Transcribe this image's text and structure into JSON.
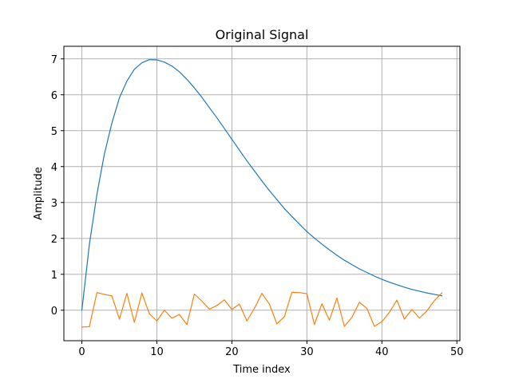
{
  "chart_data": {
    "type": "line",
    "title": "Original Signal",
    "xlabel": "Time index",
    "ylabel": "Amplitude",
    "xlim": [
      -2.4,
      50.4
    ],
    "ylim": [
      -0.85,
      7.35
    ],
    "xticks": [
      0,
      10,
      20,
      30,
      40,
      50
    ],
    "yticks": [
      0,
      1,
      2,
      3,
      4,
      5,
      6,
      7
    ],
    "grid": true,
    "legend": "none",
    "series": [
      {
        "color": "#1f77b4",
        "x": [
          0,
          1,
          2,
          3,
          4,
          5,
          6,
          7,
          8,
          9,
          10,
          11,
          12,
          13,
          14,
          15,
          16,
          17,
          18,
          19,
          20,
          21,
          22,
          23,
          24,
          25,
          26,
          27,
          28,
          29,
          30,
          31,
          32,
          33,
          34,
          35,
          36,
          37,
          38,
          39,
          40,
          41,
          42,
          43,
          44,
          45,
          46,
          47,
          48
        ],
        "values": [
          0,
          1.83,
          3.22,
          4.35,
          5.21,
          5.91,
          6.38,
          6.71,
          6.89,
          6.98,
          6.97,
          6.91,
          6.8,
          6.64,
          6.43,
          6.19,
          5.93,
          5.64,
          5.36,
          5.06,
          4.76,
          4.46,
          4.16,
          3.88,
          3.6,
          3.33,
          3.08,
          2.83,
          2.61,
          2.4,
          2.19,
          2.01,
          1.84,
          1.68,
          1.53,
          1.39,
          1.27,
          1.15,
          1.05,
          0.95,
          0.86,
          0.78,
          0.71,
          0.64,
          0.58,
          0.53,
          0.48,
          0.44,
          0.4
        ]
      },
      {
        "color": "#ff7f0e",
        "x": [
          0,
          1,
          2,
          3,
          4,
          5,
          6,
          7,
          8,
          9,
          10,
          11,
          12,
          13,
          14,
          15,
          16,
          17,
          18,
          19,
          20,
          21,
          22,
          23,
          24,
          25,
          26,
          27,
          28,
          29,
          30,
          31,
          32,
          33,
          34,
          35,
          36,
          37,
          38,
          39,
          40,
          41,
          42,
          43,
          44,
          45,
          46,
          47,
          48
        ],
        "values": [
          -0.47,
          -0.46,
          0.49,
          0.44,
          0.4,
          -0.25,
          0.47,
          -0.34,
          0.48,
          -0.1,
          -0.3,
          0,
          -0.22,
          -0.12,
          -0.4,
          0.45,
          0.25,
          0.03,
          0.13,
          0.29,
          0.02,
          0.17,
          -0.3,
          0.05,
          0.47,
          0.17,
          -0.38,
          -0.18,
          0.5,
          0.49,
          0.46,
          -0.4,
          0.18,
          -0.28,
          0.34,
          -0.45,
          -0.2,
          0.22,
          0.05,
          -0.45,
          -0.32,
          -0.06,
          0.28,
          -0.25,
          0.02,
          -0.22,
          -0.02,
          0.27,
          0.48
        ]
      }
    ]
  }
}
